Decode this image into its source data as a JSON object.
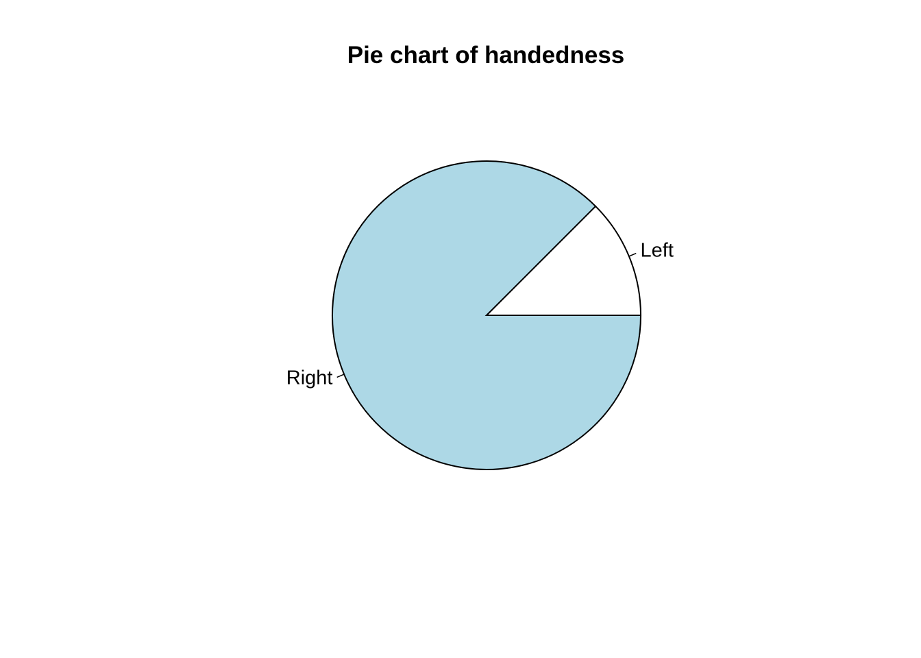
{
  "chart_data": {
    "type": "pie",
    "title": "Pie chart of handedness",
    "categories": [
      "Left",
      "Right"
    ],
    "values": [
      0.125,
      0.875
    ],
    "colors": [
      "#ffffff",
      "#add8e6"
    ],
    "start_angle_deg": 0,
    "direction": "counterclockwise",
    "border_color": "#000000"
  }
}
